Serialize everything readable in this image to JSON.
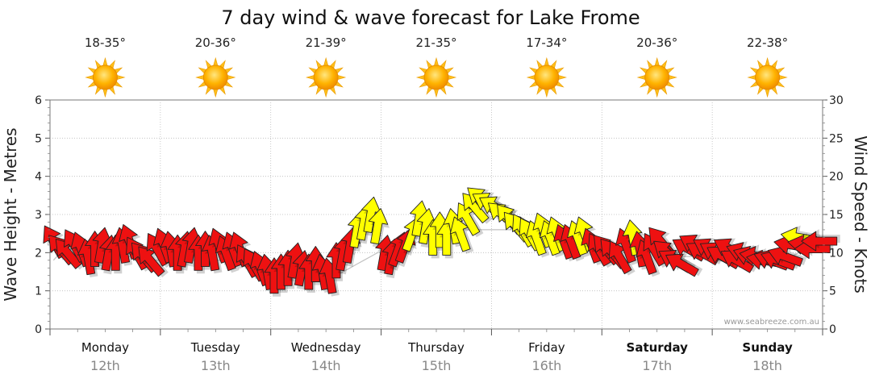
{
  "chart_data": {
    "type": "wind_wave_forecast",
    "title": "7 day wind & wave forecast for Lake Frome",
    "ylabel_left": "Wave Height - Metres",
    "ylabel_right": "Wind Speed - Knots",
    "ylim_left": [
      0,
      6
    ],
    "ylim_right": [
      0,
      30
    ],
    "left_ticks": [
      "0",
      "1",
      "2",
      "3",
      "4",
      "5",
      "6"
    ],
    "right_ticks": [
      "0",
      "5",
      "10",
      "15",
      "20",
      "25",
      "30"
    ],
    "watermark": "www.seabreeze.com.au",
    "days": [
      {
        "day": "Monday",
        "date": "12th",
        "temp": "18-35°",
        "bold": false
      },
      {
        "day": "Tuesday",
        "date": "13th",
        "temp": "20-36°",
        "bold": false
      },
      {
        "day": "Wednesday",
        "date": "14th",
        "temp": "21-39°",
        "bold": false
      },
      {
        "day": "Thursday",
        "date": "15th",
        "temp": "21-35°",
        "bold": false
      },
      {
        "day": "Friday",
        "date": "16th",
        "temp": "17-34°",
        "bold": false
      },
      {
        "day": "Saturday",
        "date": "17th",
        "temp": "20-36°",
        "bold": true
      },
      {
        "day": "Sunday",
        "date": "18th",
        "temp": "22-38°",
        "bold": true
      }
    ],
    "wind_knots": [
      11.5,
      10.5,
      10,
      11,
      10.5,
      9.5,
      10.5,
      11,
      10,
      10,
      11,
      11.5,
      10,
      9.5,
      9,
      10.5,
      11,
      10.5,
      10,
      10.5,
      11,
      10,
      10.5,
      10,
      11,
      10,
      10.5,
      10.5,
      9,
      8.5,
      8,
      7.5,
      7,
      7.5,
      8,
      9,
      8,
      7.5,
      8.5,
      7.5,
      7,
      9,
      10,
      11,
      13,
      14,
      15,
      13.5,
      10,
      9.5,
      10.5,
      11,
      12.5,
      14.5,
      13.5,
      12,
      13,
      12,
      13.5,
      12.5,
      14.5,
      16,
      17,
      16.5,
      16,
      15,
      14.5,
      13.5,
      13,
      12.5,
      12,
      13,
      12,
      12.5,
      11.5,
      11.5,
      12,
      12.5,
      11,
      10.5,
      10.5,
      10,
      9.5,
      11,
      12,
      10.5,
      9.5,
      10.5,
      11.5,
      10,
      9,
      8.5,
      10.5,
      11,
      10,
      10.5,
      10,
      9.5,
      10.5,
      9,
      10,
      9.5,
      9.5,
      9,
      9,
      9,
      9.5,
      11,
      12,
      11,
      10.5,
      11.5
    ],
    "wind_direction_deg": [
      330,
      320,
      320,
      330,
      340,
      350,
      0,
      10,
      10,
      0,
      350,
      340,
      330,
      320,
      320,
      330,
      340,
      350,
      0,
      10,
      10,
      0,
      0,
      350,
      340,
      340,
      340,
      340,
      330,
      330,
      340,
      350,
      0,
      0,
      0,
      10,
      10,
      0,
      0,
      350,
      350,
      0,
      10,
      10,
      10,
      10,
      10,
      10,
      10,
      10,
      20,
      20,
      20,
      10,
      10,
      0,
      0,
      0,
      350,
      340,
      330,
      320,
      310,
      300,
      300,
      310,
      320,
      320,
      330,
      330,
      340,
      340,
      340,
      340,
      340,
      340,
      340,
      340,
      340,
      330,
      320,
      320,
      330,
      340,
      350,
      350,
      340,
      330,
      320,
      310,
      300,
      300,
      300,
      300,
      300,
      300,
      300,
      300,
      300,
      300,
      290,
      290,
      280,
      280,
      290,
      290,
      290,
      280,
      280,
      280,
      270,
      270
    ],
    "wave_metres": [
      1.8,
      2,
      2,
      2,
      2,
      2,
      2,
      2,
      2,
      2,
      1.9,
      1.9,
      1.8,
      1.8,
      1.8,
      1.8,
      1.8,
      1.8,
      1.8,
      1.8,
      1.8,
      1.8,
      1.8,
      1.8,
      1.8,
      1.8,
      1.8,
      1.8,
      1.7,
      1.6,
      1.6,
      1.5,
      1.4,
      1.4,
      1.4,
      1.4,
      1.4,
      1.4,
      1.4,
      1.4,
      1.4,
      1.4,
      1.5,
      1.6,
      1.7,
      1.8,
      1.9,
      2,
      2,
      2,
      2,
      2.1,
      2.2,
      2.3,
      2.4,
      2.5,
      2.5,
      2.5,
      2.5,
      2.6,
      2.6,
      2.6,
      2.6,
      2.6,
      2.6,
      2.6,
      2.6,
      2.6,
      2.6,
      2.5,
      2.5,
      2.5,
      2.4,
      2.4,
      2.3,
      2.3,
      2.3,
      2.2,
      2.2,
      2.1,
      2.1,
      2,
      2,
      2,
      2,
      2,
      2,
      2,
      2,
      2,
      1.9,
      1.9,
      1.9,
      1.9,
      1.9,
      1.9,
      1.9,
      1.9,
      1.9,
      1.9,
      1.9,
      1.9,
      1.9,
      1.9,
      1.9,
      1.9,
      1.9,
      1.9,
      2,
      2,
      2,
      2
    ],
    "color_scale": {
      "red_above_knots": 0,
      "yellow_from_knots": 12,
      "yellow_to_knots": 20,
      "red": "#ee1111",
      "yellow": "#ffff00"
    }
  }
}
